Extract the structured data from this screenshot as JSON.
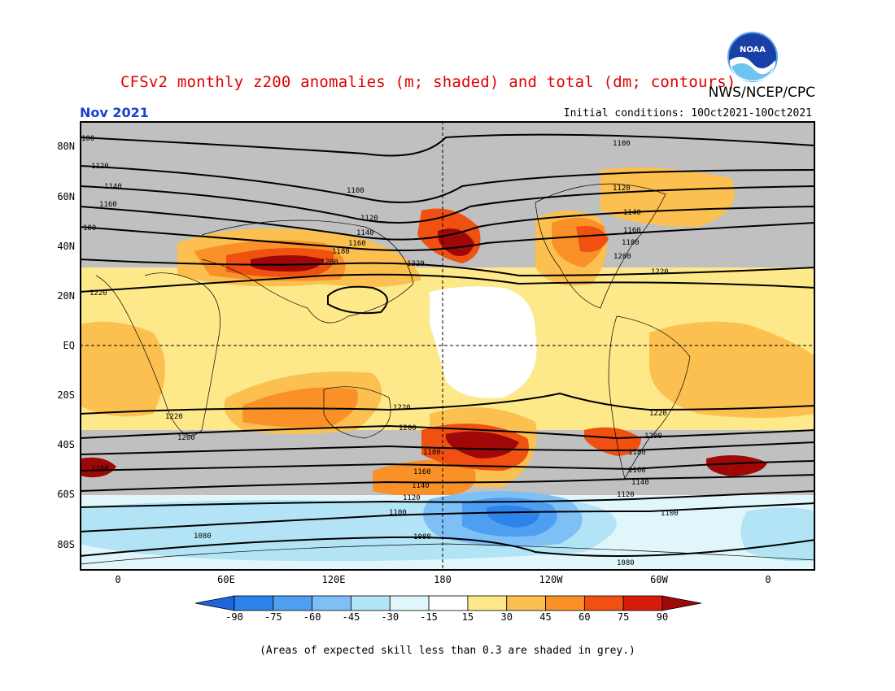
{
  "title": "CFSv2 monthly z200 anomalies (m; shaded) and total (dm; contours)",
  "period": "Nov 2021",
  "agency": "NWS/NCEP/CPC",
  "initial_conditions": "Initial conditions: 10Oct2021-10Oct2021",
  "footnote": "(Areas of expected skill less than 0.3 are shaded in grey.)",
  "logo_text": "NOAA",
  "lat_labels": [
    "80N",
    "60N",
    "40N",
    "20N",
    "EQ",
    "20S",
    "40S",
    "60S",
    "80S"
  ],
  "lon_labels": [
    "0",
    "60E",
    "120E",
    "180",
    "120W",
    "60W",
    "0"
  ],
  "colorbar": {
    "tick_labels": [
      "-90",
      "-75",
      "-60",
      "-45",
      "-30",
      "-15",
      "15",
      "30",
      "45",
      "60",
      "75",
      "90"
    ],
    "colors": [
      "#1e64dc",
      "#2e83ea",
      "#4e9ff2",
      "#7ec0f6",
      "#b2e4f6",
      "#e0f6fb",
      "#ffffff",
      "#fde88a",
      "#fbc050",
      "#f99028",
      "#f05010",
      "#d81c0c",
      "#a00808"
    ],
    "grey_color": "#c0c0c0"
  },
  "contour_labels": [
    "100",
    "1120",
    "1140",
    "1160",
    "180",
    "1220",
    "1100",
    "1120",
    "1140",
    "1160",
    "1180",
    "1200",
    "1220",
    "1100",
    "1120",
    "1140",
    "1160",
    "1180",
    "1200",
    "1220",
    "1220",
    "1220",
    "1200",
    "1220",
    "1200",
    "1180",
    "1160",
    "1140",
    "1120",
    "1100",
    "1080",
    "1080",
    "1160",
    "1180",
    "1200",
    "1160",
    "1140",
    "1120",
    "1100",
    "1080"
  ]
}
